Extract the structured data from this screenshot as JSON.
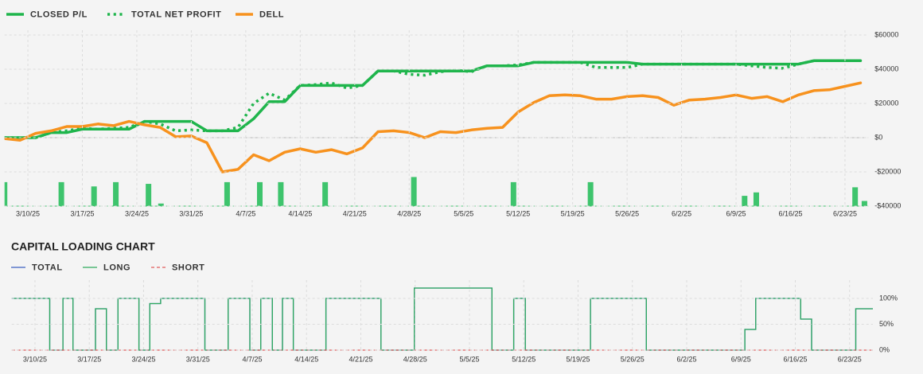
{
  "chart_data": [
    {
      "type": "line",
      "x": [
        -3,
        -1,
        1,
        3,
        5,
        7,
        9,
        11,
        13,
        15,
        17,
        19,
        21,
        23,
        25,
        27,
        29,
        31,
        33,
        35,
        37,
        39,
        41,
        43,
        45,
        47,
        49,
        51,
        53,
        55,
        57,
        59,
        61,
        63,
        65,
        67,
        69,
        71,
        73,
        75,
        77,
        79,
        81,
        83,
        85,
        87,
        89,
        91,
        93,
        95,
        97,
        99,
        101,
        103,
        105,
        107
      ],
      "xlim": [
        -3,
        108
      ],
      "xticks": [
        {
          "value": 0,
          "label": "3/10/25"
        },
        {
          "value": 7,
          "label": "3/17/25"
        },
        {
          "value": 14,
          "label": "3/24/25"
        },
        {
          "value": 21,
          "label": "3/31/25"
        },
        {
          "value": 28,
          "label": "4/7/25"
        },
        {
          "value": 35,
          "label": "4/14/25"
        },
        {
          "value": 42,
          "label": "4/21/25"
        },
        {
          "value": 49,
          "label": "4/28/25"
        },
        {
          "value": 56,
          "label": "5/5/25"
        },
        {
          "value": 63,
          "label": "5/12/25"
        },
        {
          "value": 70,
          "label": "5/19/25"
        },
        {
          "value": 77,
          "label": "5/26/25"
        },
        {
          "value": 84,
          "label": "6/2/25"
        },
        {
          "value": 91,
          "label": "6/9/25"
        },
        {
          "value": 98,
          "label": "6/16/25"
        },
        {
          "value": 105,
          "label": "6/23/25"
        }
      ],
      "ylim": [
        -40000,
        60000
      ],
      "yticks": [
        {
          "value": 60000,
          "label": "$60000"
        },
        {
          "value": 40000,
          "label": "$40000"
        },
        {
          "value": 20000,
          "label": "$20000"
        },
        {
          "value": 0,
          "label": "$0"
        },
        {
          "value": -20000,
          "label": "-$20000"
        },
        {
          "value": -40000,
          "label": "-$40000"
        }
      ],
      "grid": true,
      "series": [
        {
          "name": "CLOSED P/L",
          "color": "#1fb54c",
          "line_style": "solid",
          "values": [
            0,
            0,
            0,
            3000,
            3000,
            5000,
            5000,
            5000,
            5000,
            9500,
            9500,
            9500,
            9500,
            4000,
            4000,
            4000,
            11000,
            21000,
            21000,
            30500,
            30500,
            30500,
            30500,
            30500,
            39000,
            39000,
            39000,
            39000,
            39000,
            39000,
            39000,
            42000,
            42000,
            42000,
            44000,
            44000,
            44000,
            44000,
            44000,
            44000,
            44000,
            43000,
            43000,
            43000,
            43000,
            43000,
            43000,
            43000,
            43000,
            43000,
            43000,
            43000,
            45000,
            45000,
            45000,
            45000
          ]
        },
        {
          "name": "TOTAL NET PROFIT",
          "color": "#1fb54c",
          "line_style": "dotted",
          "values": [
            0,
            0,
            0,
            3000,
            4000,
            5500,
            5000,
            5500,
            6000,
            9500,
            8000,
            4000,
            4500,
            4000,
            4000,
            6000,
            20000,
            26000,
            22000,
            30500,
            31000,
            32000,
            29000,
            30500,
            39000,
            39000,
            37000,
            36500,
            38500,
            39500,
            38500,
            42000,
            42000,
            42500,
            44000,
            44000,
            44000,
            44000,
            41000,
            41000,
            41000,
            43000,
            43000,
            43000,
            43000,
            43000,
            43000,
            43000,
            42000,
            41000,
            40500,
            43000,
            45000,
            45000,
            45000,
            45000
          ]
        },
        {
          "name": "DELL",
          "color": "#f7921e",
          "line_style": "solid",
          "values": [
            -500,
            -1500,
            2500,
            4000,
            6500,
            6500,
            8000,
            7000,
            9500,
            7500,
            6000,
            500,
            1000,
            -3000,
            -20000,
            -18500,
            -10000,
            -13500,
            -8500,
            -6500,
            -8500,
            -7000,
            -9500,
            -6000,
            3500,
            4000,
            3000,
            0,
            3500,
            3000,
            4500,
            5500,
            6000,
            15000,
            20500,
            24500,
            25000,
            24500,
            22500,
            22500,
            24000,
            24500,
            23500,
            19000,
            22000,
            22500,
            23500,
            25000,
            23000,
            24000,
            21000,
            25000,
            27500,
            28000,
            30000,
            32000
          ]
        }
      ],
      "bars": {
        "color": "#3ec46d",
        "x": [
          -3,
          4.3,
          8.5,
          11.3,
          15.5,
          17.1,
          25.6,
          29.8,
          32.5,
          38.2,
          49.6,
          62.4,
          72.3,
          92.1,
          93.6,
          106.3,
          107.5
        ],
        "values": [
          -26000,
          -26000,
          -28500,
          -26000,
          -27000,
          -38500,
          -26000,
          -26000,
          -26000,
          -26000,
          -23000,
          -26000,
          -26000,
          -34000,
          -32000,
          -29000,
          -37000
        ]
      }
    },
    {
      "type": "step",
      "title": "CAPITAL LOADING CHART",
      "xlim": [
        -3,
        108
      ],
      "xticks": [
        {
          "value": 0,
          "label": "3/10/25"
        },
        {
          "value": 7,
          "label": "3/17/25"
        },
        {
          "value": 14,
          "label": "3/24/25"
        },
        {
          "value": 21,
          "label": "3/31/25"
        },
        {
          "value": 28,
          "label": "4/7/25"
        },
        {
          "value": 35,
          "label": "4/14/25"
        },
        {
          "value": 42,
          "label": "4/21/25"
        },
        {
          "value": 49,
          "label": "4/28/25"
        },
        {
          "value": 56,
          "label": "5/5/25"
        },
        {
          "value": 63,
          "label": "5/12/25"
        },
        {
          "value": 70,
          "label": "5/19/25"
        },
        {
          "value": 77,
          "label": "5/26/25"
        },
        {
          "value": 84,
          "label": "6/2/25"
        },
        {
          "value": 91,
          "label": "6/9/25"
        },
        {
          "value": 98,
          "label": "6/16/25"
        },
        {
          "value": 105,
          "label": "6/23/25"
        }
      ],
      "ylim": [
        0,
        125
      ],
      "yticks": [
        {
          "value": 100,
          "label": "100%"
        },
        {
          "value": 50,
          "label": "50%"
        },
        {
          "value": 0,
          "label": "0%"
        }
      ],
      "grid": true,
      "series": [
        {
          "name": "TOTAL",
          "color": "#3b5fc0",
          "line_style": "solid",
          "x": [
            -3,
            1.9,
            3.6,
            4.9,
            7.8,
            9.2,
            10.7,
            13.4,
            14.8,
            16.2,
            21.9,
            24.9,
            27.7,
            29.1,
            30.6,
            31.9,
            33.3,
            37.5,
            44.6,
            48.9,
            58.9,
            61.7,
            63.2,
            71.6,
            78.8,
            91.5,
            92.9,
            98.7,
            100.1,
            105.8
          ],
          "values": [
            100,
            0,
            100,
            0,
            80,
            0,
            100,
            0,
            90,
            100,
            0,
            100,
            0,
            100,
            0,
            100,
            0,
            100,
            0,
            120,
            0,
            100,
            0,
            100,
            0,
            40,
            100,
            60,
            0,
            80
          ]
        },
        {
          "name": "LONG",
          "color": "#2eaa5c",
          "line_style": "solid",
          "x": [
            -3,
            1.9,
            3.6,
            4.9,
            7.8,
            9.2,
            10.7,
            13.4,
            14.8,
            16.2,
            21.9,
            24.9,
            27.7,
            29.1,
            30.6,
            31.9,
            33.3,
            37.5,
            44.6,
            48.9,
            58.9,
            61.7,
            63.2,
            71.6,
            78.8,
            91.5,
            92.9,
            98.7,
            100.1,
            105.8
          ],
          "values": [
            100,
            0,
            100,
            0,
            80,
            0,
            100,
            0,
            90,
            100,
            0,
            100,
            0,
            100,
            0,
            100,
            0,
            100,
            0,
            120,
            0,
            100,
            0,
            100,
            0,
            40,
            100,
            60,
            0,
            80
          ]
        },
        {
          "name": "SHORT",
          "color": "#e05a5a",
          "line_style": "dashed",
          "x": [
            -3
          ],
          "values": [
            0
          ]
        }
      ]
    }
  ]
}
